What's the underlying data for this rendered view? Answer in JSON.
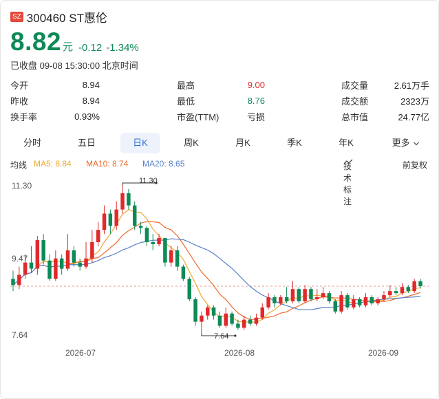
{
  "header": {
    "market": "SZ",
    "title": "300460 ST惠伦",
    "price": "8.82",
    "unit": "元",
    "change": "-0.12",
    "change_pct": "-1.34%",
    "status": "已收盘 09-08 15:30:00 北京时间"
  },
  "stats": [
    {
      "label": "今开",
      "value": "8.94",
      "color": "normal"
    },
    {
      "label": "最高",
      "value": "9.00",
      "color": "red"
    },
    {
      "label": "成交量",
      "value": "2.61万手",
      "color": "normal"
    },
    {
      "label": "昨收",
      "value": "8.94",
      "color": "normal"
    },
    {
      "label": "最低",
      "value": "8.76",
      "color": "green"
    },
    {
      "label": "成交额",
      "value": "2323万",
      "color": "normal"
    },
    {
      "label": "换手率",
      "value": "0.93%",
      "color": "normal"
    },
    {
      "label": "市盈(TTM)",
      "value": "亏损",
      "color": "normal"
    },
    {
      "label": "总市值",
      "value": "24.77亿",
      "color": "normal"
    }
  ],
  "tabs": [
    "分时",
    "五日",
    "日K",
    "周K",
    "月K",
    "季K",
    "年K",
    "更多"
  ],
  "active_tab": "日K",
  "ma": {
    "label": "均线",
    "ma5": "MA5: 8.84",
    "ma10": "MA10: 8.74",
    "ma20": "MA20: 8.65",
    "tech": "技术标注",
    "adjust": "前复权"
  },
  "colors": {
    "up": "#e0292b",
    "down": "#0e8a57",
    "ma5": "#f0a830",
    "ma10": "#ee6a2c",
    "ma20": "#5a80c8",
    "accent": "#2b6fd6"
  },
  "chart_data": {
    "type": "candlestick",
    "y_ticks": [
      "11.30",
      "9.47",
      "7.64"
    ],
    "x_labels": [
      "2026-07",
      "2026-08",
      "2026-09"
    ],
    "max_label": "11.30",
    "min_label": "7.64",
    "last_close": 8.82,
    "candles": [
      [
        9.0,
        8.85,
        9.2,
        8.7
      ],
      [
        8.85,
        9.1,
        9.3,
        8.75
      ],
      [
        9.1,
        9.4,
        9.6,
        9.0
      ],
      [
        9.4,
        9.25,
        9.8,
        9.15
      ],
      [
        9.25,
        9.95,
        10.05,
        9.1
      ],
      [
        9.95,
        9.45,
        10.1,
        9.35
      ],
      [
        9.45,
        9.0,
        9.6,
        8.95
      ],
      [
        9.0,
        9.5,
        9.7,
        8.95
      ],
      [
        9.5,
        9.25,
        9.6,
        9.1
      ],
      [
        9.25,
        9.7,
        10.1,
        9.2
      ],
      [
        9.7,
        9.4,
        9.8,
        9.3
      ],
      [
        9.4,
        9.3,
        9.5,
        9.2
      ],
      [
        9.3,
        9.5,
        9.9,
        9.25
      ],
      [
        9.5,
        9.9,
        10.2,
        9.4
      ],
      [
        9.9,
        10.2,
        10.4,
        9.8
      ],
      [
        10.2,
        10.6,
        10.8,
        10.1
      ],
      [
        10.6,
        10.3,
        10.7,
        10.1
      ],
      [
        10.3,
        10.7,
        10.9,
        10.2
      ],
      [
        10.7,
        11.1,
        11.3,
        10.6
      ],
      [
        11.1,
        10.8,
        11.2,
        10.7
      ],
      [
        10.8,
        10.3,
        10.9,
        10.2
      ],
      [
        10.3,
        10.25,
        10.4,
        10.1
      ],
      [
        10.25,
        9.9,
        10.3,
        9.8
      ],
      [
        9.9,
        9.85,
        10.1,
        9.7
      ],
      [
        9.85,
        10.0,
        10.1,
        9.8
      ],
      [
        10.0,
        9.4,
        10.0,
        9.3
      ],
      [
        9.4,
        9.7,
        9.8,
        9.3
      ],
      [
        9.7,
        9.3,
        9.8,
        9.2
      ],
      [
        9.3,
        9.0,
        9.35,
        8.95
      ],
      [
        9.0,
        8.5,
        9.05,
        8.45
      ],
      [
        8.5,
        7.95,
        8.55,
        7.85
      ],
      [
        7.95,
        8.1,
        8.2,
        7.64
      ],
      [
        8.1,
        8.3,
        8.35,
        8.0
      ],
      [
        8.3,
        8.1,
        8.35,
        8.0
      ],
      [
        8.1,
        7.85,
        8.2,
        7.8
      ],
      [
        7.85,
        8.15,
        8.3,
        7.8
      ],
      [
        8.15,
        7.9,
        8.2,
        7.85
      ],
      [
        7.9,
        7.8,
        8.0,
        7.75
      ],
      [
        7.8,
        8.0,
        8.1,
        7.75
      ],
      [
        8.0,
        7.9,
        8.1,
        7.85
      ],
      [
        7.9,
        8.05,
        8.15,
        7.85
      ],
      [
        8.05,
        8.3,
        8.4,
        8.0
      ],
      [
        8.3,
        8.55,
        8.65,
        8.25
      ],
      [
        8.55,
        8.4,
        8.6,
        8.3
      ],
      [
        8.4,
        8.55,
        8.6,
        8.35
      ],
      [
        8.55,
        8.45,
        8.8,
        8.4
      ],
      [
        8.45,
        8.75,
        8.95,
        8.4
      ],
      [
        8.75,
        8.45,
        8.8,
        8.4
      ],
      [
        8.45,
        8.75,
        8.85,
        8.4
      ],
      [
        8.75,
        8.5,
        8.8,
        8.45
      ],
      [
        8.5,
        8.55,
        8.75,
        8.45
      ],
      [
        8.55,
        8.65,
        8.8,
        8.5
      ],
      [
        8.65,
        8.45,
        8.7,
        8.4
      ],
      [
        8.45,
        8.2,
        8.5,
        8.15
      ],
      [
        8.2,
        8.6,
        8.7,
        8.15
      ],
      [
        8.6,
        8.3,
        8.65,
        8.25
      ],
      [
        8.3,
        8.5,
        8.6,
        8.25
      ],
      [
        8.5,
        8.35,
        8.55,
        8.3
      ],
      [
        8.35,
        8.55,
        8.65,
        8.3
      ],
      [
        8.55,
        8.4,
        8.6,
        8.35
      ],
      [
        8.4,
        8.5,
        8.55,
        8.35
      ],
      [
        8.5,
        8.6,
        8.7,
        8.45
      ],
      [
        8.6,
        8.7,
        8.85,
        8.55
      ],
      [
        8.7,
        8.65,
        8.8,
        8.6
      ],
      [
        8.65,
        8.8,
        8.9,
        8.6
      ],
      [
        8.8,
        8.7,
        8.85,
        8.65
      ],
      [
        8.7,
        8.94,
        9.0,
        8.65
      ],
      [
        8.94,
        8.82,
        9.0,
        8.76
      ]
    ]
  }
}
